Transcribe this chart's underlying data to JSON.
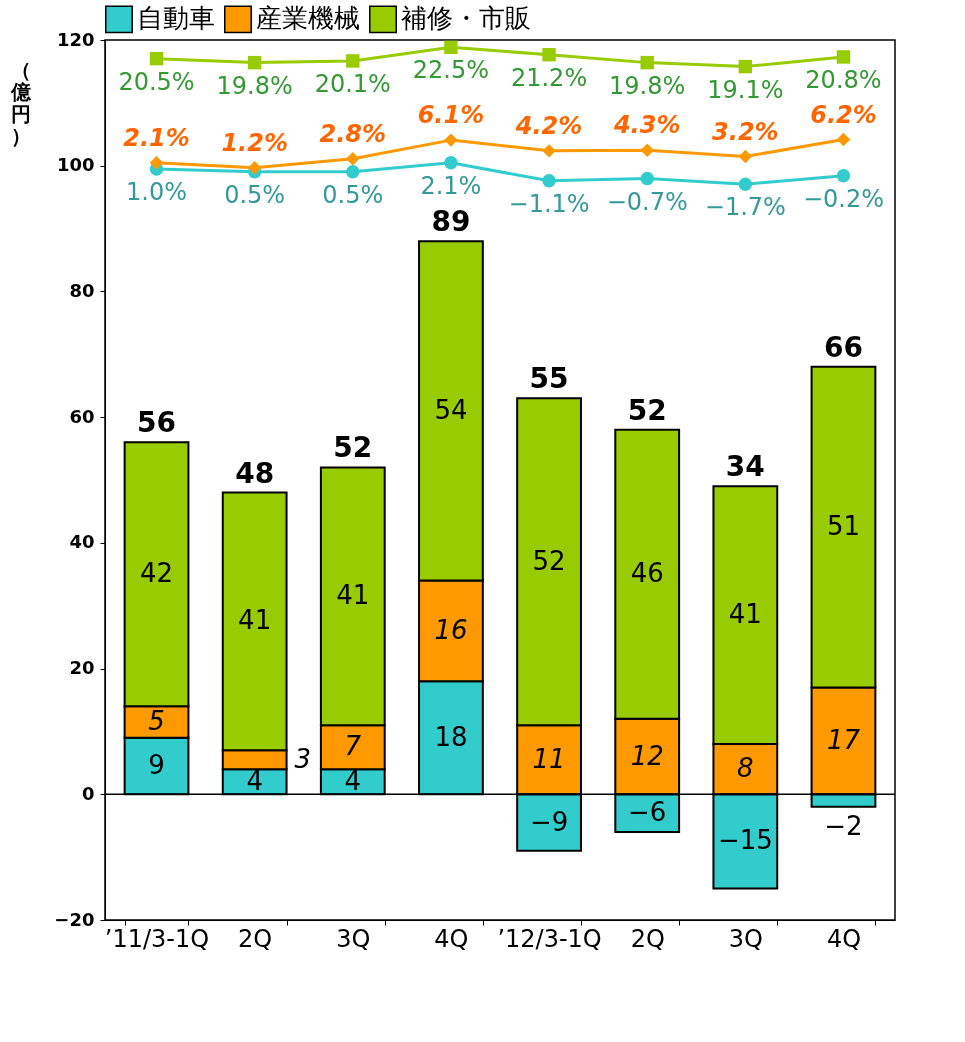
{
  "chart_data": {
    "type": "bar",
    "stacked": true,
    "ylabel": "（億円）",
    "legend": "top",
    "grid": false,
    "categories": [
      "’11/3-1Q",
      "2Q",
      "3Q",
      "4Q",
      "’12/3-1Q",
      "2Q",
      "3Q",
      "4Q"
    ],
    "ylim": [
      -20,
      120
    ],
    "yticks": [
      -20,
      0,
      20,
      40,
      60,
      80,
      100,
      120
    ],
    "y2lim": [
      -131.8,
      23.8
    ],
    "ref_lines": [
      {
        "axis": "y",
        "value": 0,
        "color": "#000000"
      }
    ],
    "totals": [
      "56",
      "48",
      "52",
      "89",
      "55",
      "52",
      "34",
      "66"
    ],
    "series": [
      {
        "name": "自動車",
        "color": "#33cccc",
        "values": [
          9,
          4,
          4,
          18,
          -9,
          -6,
          -15,
          -2
        ],
        "value_labels": [
          "9",
          "4",
          "4",
          "18",
          "−9",
          "−6",
          "−15",
          "−2"
        ]
      },
      {
        "name": "産業機械",
        "color": "#ff9900",
        "values": [
          5,
          3,
          7,
          16,
          11,
          12,
          8,
          17
        ],
        "value_labels": [
          "5",
          "3",
          "7",
          "16",
          "11",
          "12",
          "8",
          "17"
        ]
      },
      {
        "name": "補修・市販",
        "color": "#99cc00",
        "values": [
          42,
          41,
          41,
          54,
          52,
          46,
          41,
          51
        ],
        "value_labels": [
          "42",
          "41",
          "41",
          "54",
          "52",
          "46",
          "41",
          "51"
        ]
      },
      {
        "type": "line",
        "axis": "y2",
        "color": "#33cccc",
        "marker": "circle",
        "values": [
          1.0,
          0.5,
          0.5,
          2.1,
          -1.1,
          -0.7,
          -1.7,
          -0.2
        ],
        "value_labels": [
          "1.0%",
          "0.5%",
          "0.5%",
          "2.1%",
          "−1.1%",
          "−0.7%",
          "−1.7%",
          "−0.2%"
        ]
      },
      {
        "type": "line",
        "axis": "y2",
        "color": "#ff9900",
        "marker": "diamond",
        "values": [
          2.1,
          1.2,
          2.8,
          6.1,
          4.2,
          4.3,
          3.2,
          6.2
        ],
        "value_labels": [
          "2.1%",
          "1.2%",
          "2.8%",
          "6.1%",
          "4.2%",
          "4.3%",
          "3.2%",
          "6.2%"
        ]
      },
      {
        "type": "line",
        "axis": "y2",
        "color": "#99cc00",
        "marker": "square",
        "values": [
          20.5,
          19.8,
          20.1,
          22.5,
          21.2,
          19.8,
          19.1,
          20.8
        ],
        "value_labels": [
          "20.5%",
          "19.8%",
          "20.1%",
          "22.5%",
          "21.2%",
          "19.8%",
          "19.1%",
          "20.8%"
        ]
      }
    ]
  }
}
